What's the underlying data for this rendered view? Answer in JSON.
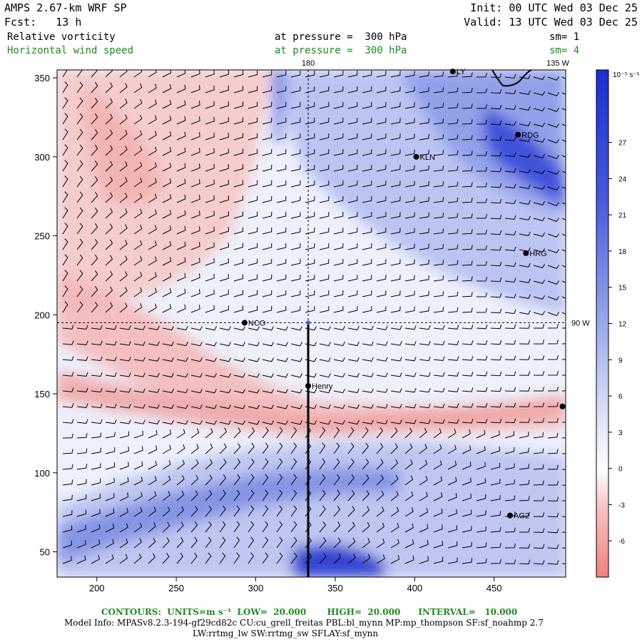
{
  "header": {
    "model": "AMPS 2.67-km WRF SP",
    "fcst": "Fcst:   13 h",
    "init": "Init: 00 UTC Wed 03 Dec 25",
    "valid": "Valid: 13 UTC Wed 03 Dec 25",
    "field1_name": "Relative vorticity",
    "field1_level": "at pressure =  300 hPa",
    "field1_sm": "sm= 1",
    "field2_name": "Horizontal wind speed",
    "field2_level": "at pressure =  300 hPa",
    "field2_sm": "sm= 4"
  },
  "map_labels": {
    "lon_180": "180",
    "lon_135w": "135 W",
    "lon_90w": "90 W"
  },
  "footer": {
    "contours": "CONTOURS:  UNITS=m s⁻¹  LOW=  20.000       HIGH=  20.000      INTERVAL=   10.000",
    "model_info": "Model Info: MPASv8.2.3-194-gf29cd82c CU:cu_grell_freitas PBL:bl_mynn MP:mp_thompson SF:sf_noahmp 2.7",
    "model_info2": "LW:rrtmg_lw SW:rrtmg_sw SFLAY:sf_mynn"
  },
  "colorbar": {
    "unit": "10⁻⁵ s⁻¹",
    "ticks": [
      27,
      24,
      21,
      18,
      15,
      12,
      9,
      6,
      3,
      0,
      -3,
      -6
    ],
    "range": [
      -9,
      33
    ]
  },
  "chart_data": {
    "type": "heatmap",
    "x_ticks": [
      200,
      250,
      300,
      350,
      400,
      450
    ],
    "y_ticks": [
      50,
      100,
      150,
      200,
      250,
      300,
      350
    ],
    "xlim": [
      175,
      495
    ],
    "ylim": [
      34,
      355
    ],
    "stations": [
      {
        "name": "NCO",
        "x": 293,
        "y": 195
      },
      {
        "name": "Henry",
        "x": 333,
        "y": 155
      },
      {
        "name": "KLN",
        "x": 401,
        "y": 300
      },
      {
        "name": "RDG",
        "x": 465,
        "y": 314
      },
      {
        "name": "HRG",
        "x": 470,
        "y": 239
      },
      {
        "name": "AG2",
        "x": 460,
        "y": 73
      },
      {
        "name": "LY",
        "x": 424,
        "y": 354
      },
      {
        "name": "",
        "x": 493,
        "y": 142
      }
    ],
    "pole": {
      "x": 333,
      "y": 195
    },
    "transect": {
      "x": 333,
      "y_from": 195,
      "y_to": 34
    }
  }
}
